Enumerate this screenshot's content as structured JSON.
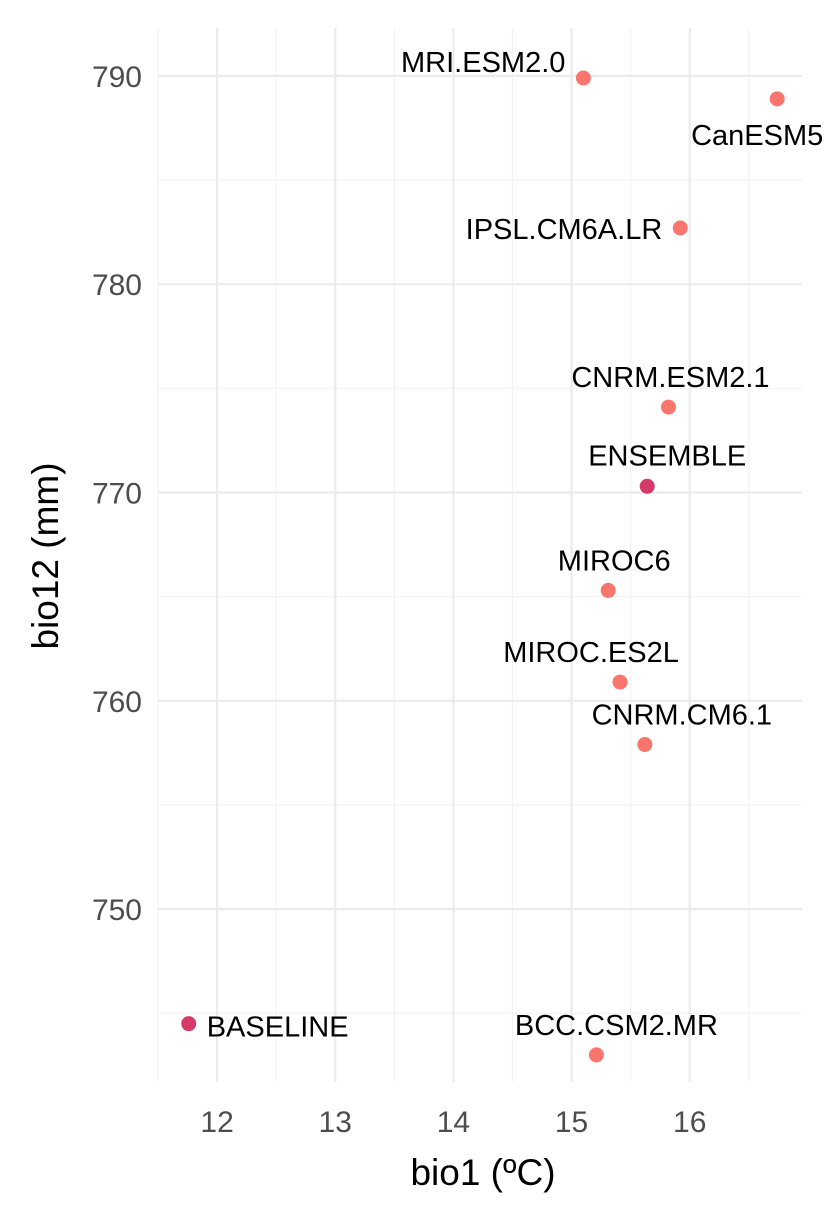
{
  "chart_data": {
    "type": "scatter",
    "title": "",
    "xlabel": "bio1 (ºC)",
    "ylabel": "bio12 (mm)",
    "xlim": [
      11.5,
      16.95
    ],
    "ylim": [
      741.7,
      792.3
    ],
    "x_ticks": [
      12,
      13,
      14,
      15,
      16
    ],
    "y_ticks": [
      750,
      760,
      770,
      780,
      790
    ],
    "grid": true,
    "legend": "none",
    "colors": {
      "model": "#f8766d",
      "highlight": "#d43a69"
    },
    "points": [
      {
        "label": "MRI.ESM2.0",
        "x": 15.1,
        "y": 789.9,
        "group": "model"
      },
      {
        "label": "CanESM5",
        "x": 16.74,
        "y": 788.9,
        "group": "model"
      },
      {
        "label": "IPSL.CM6A.LR",
        "x": 15.92,
        "y": 782.7,
        "group": "model"
      },
      {
        "label": "CNRM.ESM2.1",
        "x": 15.82,
        "y": 774.1,
        "group": "model"
      },
      {
        "label": "ENSEMBLE",
        "x": 15.64,
        "y": 770.3,
        "group": "highlight"
      },
      {
        "label": "MIROC6",
        "x": 15.31,
        "y": 765.3,
        "group": "model"
      },
      {
        "label": "MIROC.ES2L",
        "x": 15.41,
        "y": 760.9,
        "group": "model"
      },
      {
        "label": "CNRM.CM6.1",
        "x": 15.62,
        "y": 757.9,
        "group": "model"
      },
      {
        "label": "BASELINE",
        "x": 11.76,
        "y": 744.5,
        "group": "highlight"
      },
      {
        "label": "BCC.CSM2.MR",
        "x": 15.21,
        "y": 743.0,
        "group": "model"
      }
    ]
  }
}
